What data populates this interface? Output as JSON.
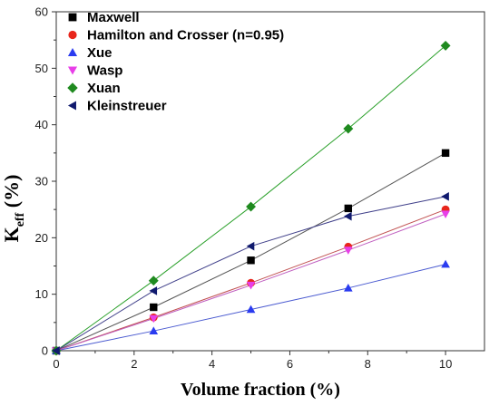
{
  "chart_data": {
    "type": "line",
    "title": "",
    "xlabel": "Volume fraction (%)",
    "ylabel_main": "K",
    "ylabel_sub": "eff",
    "ylabel_unit": " (%)",
    "xlim": [
      0,
      11
    ],
    "ylim": [
      0,
      60
    ],
    "xticks": [
      "0",
      "2",
      "4",
      "6",
      "8",
      "10"
    ],
    "yticks": [
      "0",
      "10",
      "20",
      "30",
      "40",
      "50",
      "60"
    ],
    "x": [
      0,
      2.5,
      5,
      7.5,
      10
    ],
    "legend_position": "top-left",
    "grid": false,
    "series": [
      {
        "name": "Maxwell",
        "marker": "square",
        "color": "#000000",
        "line_color": "#555555",
        "values": [
          0,
          7.7,
          16.0,
          25.2,
          35.0
        ]
      },
      {
        "name": "Hamilton and Crosser (n=0.95)",
        "marker": "circle",
        "color": "#e8261c",
        "line_color": "#c05050",
        "values": [
          0,
          5.9,
          12.0,
          18.4,
          25.0
        ]
      },
      {
        "name": "Xue",
        "marker": "triangle-up",
        "color": "#2a3bf0",
        "line_color": "#4a5ad0",
        "values": [
          0,
          3.5,
          7.3,
          11.1,
          15.3
        ]
      },
      {
        "name": "Wasp",
        "marker": "triangle-down",
        "color": "#e83ee8",
        "line_color": "#c060c0",
        "values": [
          0,
          5.7,
          11.6,
          17.8,
          24.2
        ]
      },
      {
        "name": "Xuan",
        "marker": "diamond",
        "color": "#1f8a1f",
        "line_color": "#2aa02a",
        "values": [
          0,
          12.4,
          25.5,
          39.3,
          54.0
        ]
      },
      {
        "name": "Kleinstreuer",
        "marker": "triangle-left",
        "color": "#101a6e",
        "line_color": "#40408a",
        "values": [
          0,
          10.6,
          18.5,
          23.8,
          27.3
        ]
      }
    ]
  }
}
